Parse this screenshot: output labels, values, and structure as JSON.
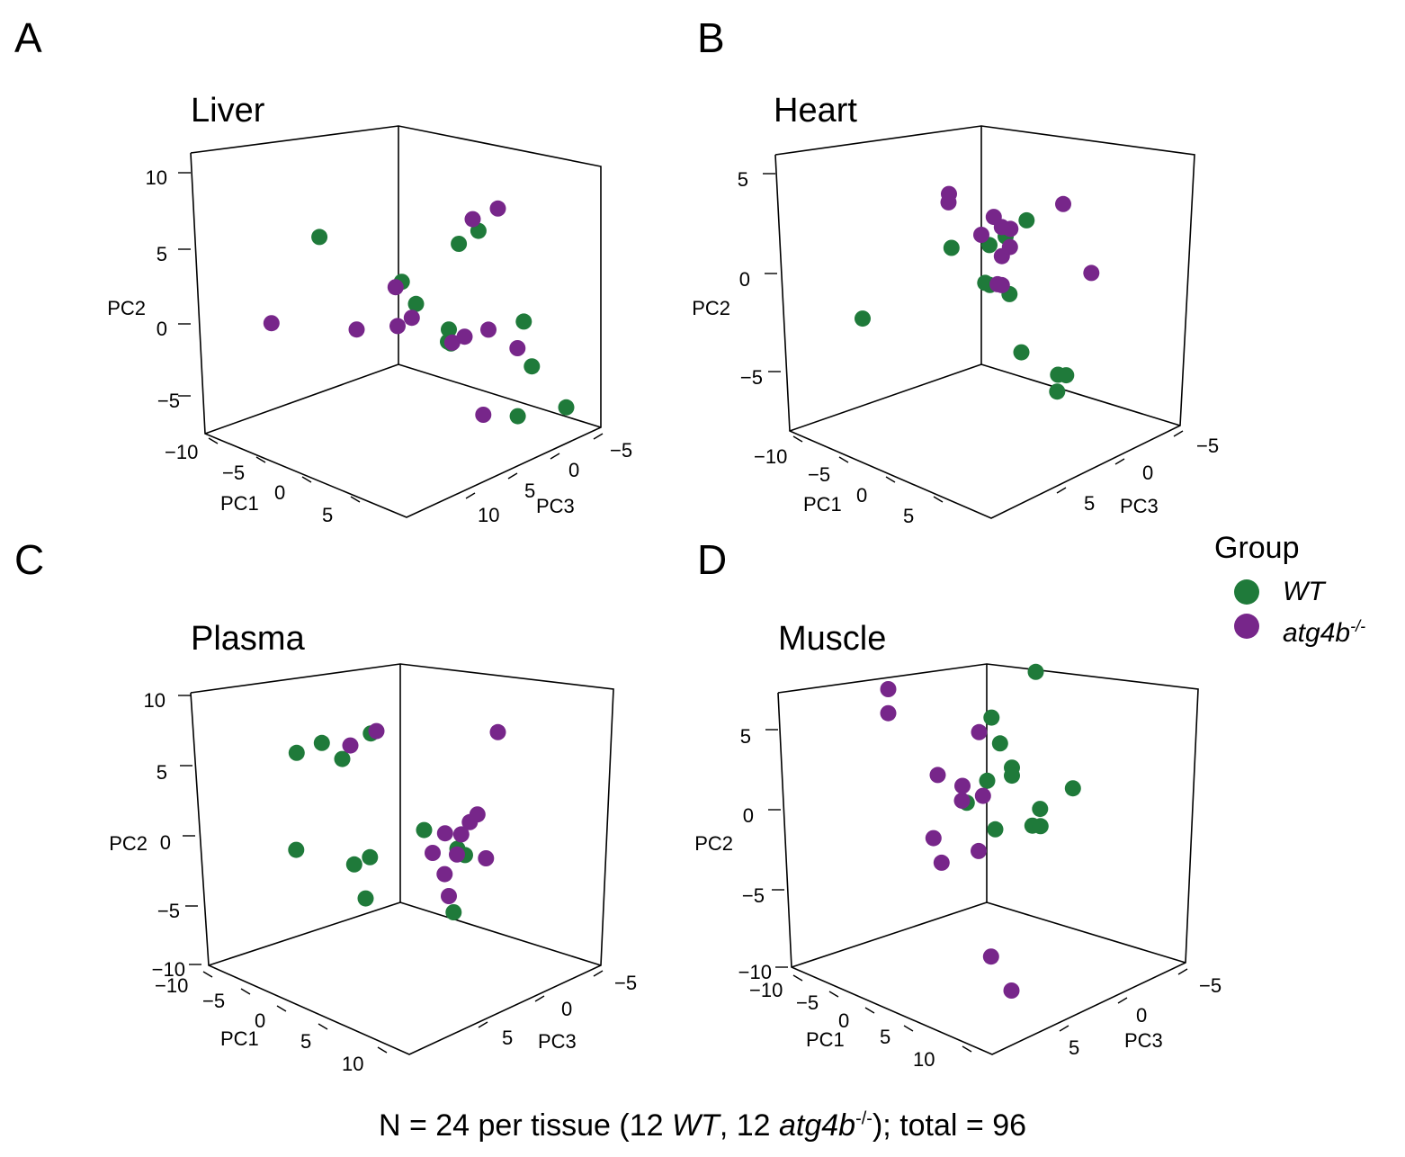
{
  "colors": {
    "WT": "#1f7a3a",
    "atg4b": "#77268a",
    "axis": "#000000"
  },
  "legend": {
    "title": "Group",
    "wt_label": "WT",
    "atg_label": "atg4b",
    "atg_superscript": "-/-"
  },
  "caption": {
    "prefix": "N = 24 per tissue (12 ",
    "wt": "WT",
    "mid": ", 12 ",
    "atg": "atg4b",
    "sup": "-/-",
    "suffix": "); total = 96"
  },
  "chart_data": [
    {
      "panel": "A",
      "title": "Liver",
      "type": "scatter",
      "axis_labels": {
        "x": "PC1",
        "y": "PC2",
        "z": "PC3"
      },
      "ticks": {
        "PC1": [
          "−10",
          "−5",
          "0",
          "5"
        ],
        "PC2": [
          "10",
          "5",
          "0",
          "−5"
        ],
        "PC3": [
          "−5",
          "0",
          "5",
          "10"
        ]
      },
      "series": [
        {
          "name": "WT",
          "points": [
            [
              -1.2,
              6.0,
              -9.0
            ],
            [
              2.0,
              3.0,
              -1.8
            ],
            [
              2.5,
              1.5,
              -0.5
            ],
            [
              5.0,
              0.0,
              1.0
            ],
            [
              4.8,
              -1.0,
              1.5
            ],
            [
              4.0,
              -1.0,
              2.0
            ],
            [
              7.5,
              0.5,
              8.0
            ],
            [
              8.0,
              -2.5,
              8.5
            ],
            [
              6.8,
              -6.0,
              8.0
            ],
            [
              8.0,
              -5.5,
              13.0
            ],
            [
              0.8,
              5.0,
              7.0
            ],
            [
              2.2,
              6.0,
              8.0
            ]
          ]
        },
        {
          "name": "atg4b-/-",
          "points": [
            [
              -9.5,
              -1.0,
              -6.0
            ],
            [
              -4.0,
              -1.0,
              -1.0
            ],
            [
              -1.0,
              -0.5,
              1.0
            ],
            [
              1.0,
              2.5,
              -1.5
            ],
            [
              2.0,
              0.5,
              -0.5
            ],
            [
              4.5,
              -1.0,
              2.0
            ],
            [
              5.5,
              -0.5,
              2.5
            ],
            [
              6.5,
              0.0,
              4.5
            ],
            [
              9.0,
              -1.0,
              5.5
            ],
            [
              5.0,
              -6.0,
              5.5
            ],
            [
              -2.5,
              6.0,
              12.5
            ],
            [
              0.0,
              7.0,
              13.0
            ]
          ]
        }
      ]
    },
    {
      "panel": "B",
      "title": "Heart",
      "type": "scatter",
      "axis_labels": {
        "x": "PC1",
        "y": "PC2",
        "z": "PC3"
      },
      "ticks": {
        "PC1": [
          "−10",
          "−5",
          "0",
          "5"
        ],
        "PC2": [
          "5",
          "0",
          "−5"
        ],
        "PC3": [
          "−5",
          "0",
          "5"
        ]
      },
      "series": [
        {
          "name": "WT",
          "points": [
            [
              -13.0,
              -3.5,
              -1.0
            ],
            [
              -3.5,
              1.0,
              0.0
            ],
            [
              0.0,
              -0.5,
              0.5
            ],
            [
              0.5,
              1.5,
              0.5
            ],
            [
              1.0,
              -0.5,
              0.0
            ],
            [
              3.5,
              3.0,
              2.0
            ],
            [
              1.5,
              2.0,
              1.5
            ],
            [
              1.5,
              -1.0,
              2.0
            ],
            [
              2.0,
              -4.0,
              3.0
            ],
            [
              4.5,
              -5.0,
              5.0
            ],
            [
              5.0,
              -5.0,
              5.5
            ],
            [
              3.5,
              -6.0,
              6.0
            ]
          ]
        },
        {
          "name": "atg4b-/-",
          "points": [
            [
              -2.0,
              4.0,
              -2.0
            ],
            [
              -2.5,
              3.5,
              -1.5
            ],
            [
              0.0,
              2.0,
              0.0
            ],
            [
              1.0,
              3.0,
              0.5
            ],
            [
              1.5,
              2.5,
              1.0
            ],
            [
              2.5,
              2.5,
              1.0
            ],
            [
              1.5,
              1.0,
              1.0
            ],
            [
              1.0,
              -0.5,
              1.0
            ],
            [
              1.5,
              -0.5,
              1.0
            ],
            [
              2.0,
              1.5,
              1.5
            ],
            [
              6.0,
              4.0,
              4.0
            ],
            [
              7.5,
              0.5,
              6.0
            ]
          ]
        }
      ]
    },
    {
      "panel": "C",
      "title": "Plasma",
      "type": "scatter",
      "axis_labels": {
        "x": "PC1",
        "y": "PC2",
        "z": "PC3"
      },
      "ticks": {
        "PC1": [
          "−10",
          "−5",
          "0",
          "5",
          "10"
        ],
        "PC2": [
          "10",
          "5",
          "0",
          "−5",
          "−10"
        ],
        "PC3": [
          "−5",
          "0",
          "5"
        ]
      },
      "series": [
        {
          "name": "WT",
          "points": [
            [
              -9.0,
              5.0,
              -3.5
            ],
            [
              -6.5,
              6.0,
              -3.0
            ],
            [
              -5.0,
              5.0,
              -2.0
            ],
            [
              -3.0,
              7.0,
              -0.5
            ],
            [
              -9.5,
              -2.0,
              -3.0
            ],
            [
              -4.5,
              -2.5,
              -1.0
            ],
            [
              -4.0,
              -2.0,
              0.5
            ],
            [
              -4.5,
              -5.0,
              0.5
            ],
            [
              4.0,
              -5.0,
              2.5
            ],
            [
              1.0,
              0.5,
              2.0
            ],
            [
              4.0,
              -0.5,
              3.0
            ],
            [
              4.0,
              -1.0,
              4.0
            ]
          ]
        },
        {
          "name": "atg4b-/-",
          "points": [
            [
              -4.5,
              6.0,
              -1.5
            ],
            [
              -1.0,
              7.5,
              -2.0
            ],
            [
              2.0,
              -1.0,
              2.0
            ],
            [
              3.0,
              0.5,
              2.5
            ],
            [
              4.0,
              0.5,
              3.5
            ],
            [
              5.0,
              1.5,
              3.5
            ],
            [
              3.5,
              -1.0,
              3.5
            ],
            [
              3.0,
              -4.0,
              3.0
            ],
            [
              6.0,
              -1.0,
              4.5
            ],
            [
              5.0,
              2.0,
              4.5
            ],
            [
              6.5,
              8.0,
              5.5
            ],
            [
              2.5,
              -2.5,
              3.0
            ]
          ]
        }
      ]
    },
    {
      "panel": "D",
      "title": "Muscle",
      "type": "scatter",
      "axis_labels": {
        "x": "PC1",
        "y": "PC2",
        "z": "PC3"
      },
      "ticks": {
        "PC1": [
          "−10",
          "−5",
          "0",
          "5",
          "10"
        ],
        "PC2": [
          "5",
          "0",
          "−5",
          "−10"
        ],
        "PC3": [
          "−5",
          "0",
          "5"
        ]
      },
      "series": [
        {
          "name": "WT",
          "points": [
            [
              1.0,
              6.0,
              -0.5
            ],
            [
              2.0,
              4.5,
              -0.5
            ],
            [
              2.5,
              3.0,
              0.5
            ],
            [
              2.5,
              2.5,
              0.5
            ],
            [
              0.5,
              2.0,
              -0.5
            ],
            [
              -1.0,
              0.5,
              -1.5
            ],
            [
              1.0,
              -1.0,
              0.0
            ],
            [
              4.0,
              -0.5,
              1.5
            ],
            [
              4.5,
              -0.5,
              2.0
            ],
            [
              4.0,
              0.5,
              2.5
            ],
            [
              6.5,
              2.0,
              4.0
            ],
            [
              3.5,
              9.0,
              2.5
            ]
          ]
        },
        {
          "name": "atg4b-/-",
          "points": [
            [
              -7.5,
              7.0,
              -4.5
            ],
            [
              -7.5,
              5.5,
              -4.5
            ],
            [
              0.0,
              5.0,
              -1.0
            ],
            [
              -3.5,
              2.0,
              -2.5
            ],
            [
              -1.5,
              1.5,
              -1.5
            ],
            [
              0.0,
              1.0,
              -0.5
            ],
            [
              -2.0,
              0.5,
              -1.0
            ],
            [
              -4.0,
              -2.0,
              -2.5
            ],
            [
              -3.5,
              -3.5,
              -2.0
            ],
            [
              -0.5,
              -2.5,
              -0.5
            ],
            [
              0.5,
              -9.0,
              0.0
            ],
            [
              2.0,
              -11.0,
              1.0
            ]
          ]
        }
      ]
    }
  ]
}
